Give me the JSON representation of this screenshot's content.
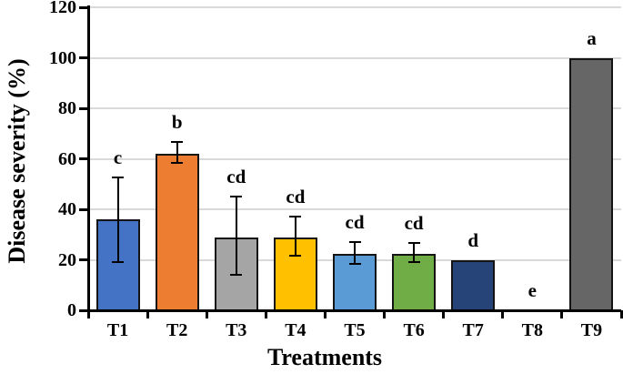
{
  "chart_data": {
    "type": "bar",
    "title": "",
    "xlabel": "Treatments",
    "ylabel": "Disease severity (%)",
    "ylim": [
      0,
      120
    ],
    "yticks": [
      0,
      20,
      40,
      60,
      80,
      100,
      120
    ],
    "grid": true,
    "legend": "none",
    "categories": [
      "T1",
      "T2",
      "T3",
      "T4",
      "T5",
      "T6",
      "T7",
      "T8",
      "T9"
    ],
    "values": [
      36,
      62,
      29,
      29,
      22.5,
      22.5,
      20,
      0,
      100
    ],
    "error_low": [
      19,
      58.5,
      14,
      21.5,
      18.5,
      19,
      null,
      null,
      null
    ],
    "error_high": [
      52.5,
      66.5,
      45,
      37,
      27,
      26.5,
      null,
      null,
      null
    ],
    "significance_letters": [
      "c",
      "b",
      "cd",
      "cd",
      "cd",
      "cd",
      "d",
      "e",
      "a"
    ],
    "bar_colors": [
      "#4472C4",
      "#ED7D31",
      "#A5A5A5",
      "#FFC000",
      "#5B9BD5",
      "#70AD47",
      "#264478",
      "#FFFFFF",
      "#666666"
    ],
    "bar_border_color": "#141414",
    "error_bar_color": "#000000",
    "gridline_color": "#d9d9d9",
    "axis_color": "#000000",
    "text_color": "#000000"
  }
}
